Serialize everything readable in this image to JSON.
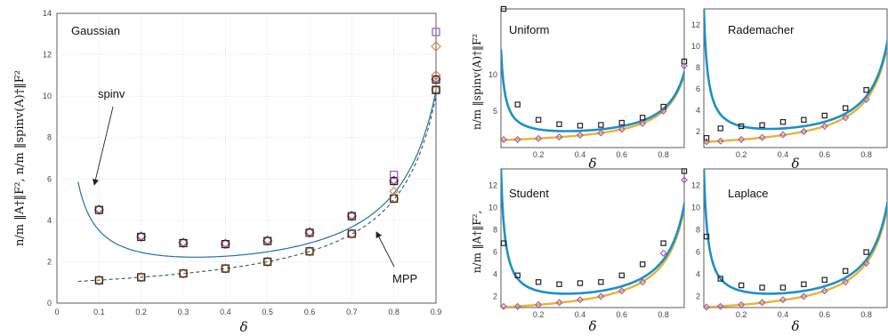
{
  "colors": {
    "spinv_line": "#1f6fb2",
    "mpp_line": "#2a5f44",
    "blue_thick": "#1b90c8",
    "orange_thick": "#e9b332",
    "diamond": "#9b57b8",
    "square": "#222222"
  },
  "labels": {
    "spinv": "spinv",
    "mpp": "MPP",
    "ylabel_main": "n/m ‖A†‖F², n/m ‖spinv(A)†‖F²",
    "ylabel_top": "n/m ‖spinv(A)†‖F²",
    "ylabel_bottom": "n/m ‖A†‖F²,",
    "xlabel": "δ"
  },
  "chart_data": [
    {
      "type": "line",
      "title": "Gaussian",
      "xlabel": "δ",
      "xlim": [
        0,
        0.9
      ],
      "ylim": [
        0,
        14
      ],
      "xticks": [
        0,
        0.1,
        0.2,
        0.3,
        0.4,
        0.5,
        0.6,
        0.7,
        0.8,
        0.9
      ],
      "yticks": [
        0,
        2,
        4,
        6,
        8,
        10,
        12,
        14
      ],
      "grid": true,
      "annotations": [
        "spinv",
        "MPP"
      ],
      "x": [
        0.1,
        0.2,
        0.3,
        0.4,
        0.5,
        0.6,
        0.7,
        0.8,
        0.9
      ],
      "series": [
        {
          "name": "spinv",
          "style": "solid",
          "values": [
            4.5,
            3.2,
            2.9,
            2.85,
            3.0,
            3.4,
            4.2,
            5.9,
            10.8
          ]
        },
        {
          "name": "MPP",
          "style": "dashed",
          "values": [
            1.11,
            1.25,
            1.43,
            1.67,
            2.0,
            2.5,
            3.33,
            5.0,
            10.0
          ]
        }
      ],
      "markers_upper": [
        4.5,
        3.2,
        2.9,
        2.85,
        3.0,
        3.4,
        4.2,
        5.9,
        10.8
      ],
      "markers_lower": [
        1.1,
        1.25,
        1.43,
        1.67,
        2.0,
        2.5,
        3.35,
        5.05,
        10.3
      ],
      "outliers": [
        13.1,
        12.4,
        11.0,
        6.2,
        5.4
      ]
    },
    {
      "type": "line",
      "title": "Uniform",
      "xlabel": "δ",
      "xlim": [
        0.02,
        0.9
      ],
      "ylim": [
        0,
        19
      ],
      "xticks": [
        0.2,
        0.4,
        0.6,
        0.8
      ],
      "yticks": [
        5,
        10
      ],
      "grid": false,
      "x": [
        0.1,
        0.2,
        0.3,
        0.4,
        0.5,
        0.6,
        0.7,
        0.8,
        0.9
      ],
      "squares": [
        5.9,
        3.8,
        3.2,
        3.0,
        3.1,
        3.4,
        4.1,
        5.6,
        11.8
      ],
      "diamonds": [
        1.1,
        1.25,
        1.45,
        1.7,
        2.0,
        2.5,
        3.3,
        5.0,
        11.2
      ],
      "extra_points": {
        "square_at_0_02": 19.0,
        "diamond_at_0_02": 1.1
      }
    },
    {
      "type": "line",
      "title": "Rademacher",
      "xlabel": "δ",
      "xlim": [
        0.02,
        0.9
      ],
      "ylim": [
        0.5,
        13.5
      ],
      "xticks": [
        0.2,
        0.4,
        0.6,
        0.8
      ],
      "yticks": [
        2,
        4,
        6,
        8,
        10,
        12
      ],
      "grid": false,
      "x": [
        0.1,
        0.2,
        0.3,
        0.4,
        0.5,
        0.6,
        0.7,
        0.8
      ],
      "squares": [
        2.3,
        2.5,
        2.6,
        2.9,
        3.1,
        3.5,
        4.2,
        5.9
      ],
      "diamonds": [
        1.1,
        1.25,
        1.45,
        1.7,
        2.0,
        2.5,
        3.3,
        5.0
      ],
      "extra_points": {
        "square_at_0_02": 1.4,
        "diamond_at_0_02": 1.05
      }
    },
    {
      "type": "line",
      "title": "Student",
      "xlabel": "δ",
      "xlim": [
        0.02,
        0.9
      ],
      "ylim": [
        1,
        13.5
      ],
      "xticks": [
        0.2,
        0.4,
        0.6,
        0.8
      ],
      "yticks": [
        2,
        4,
        6,
        8,
        10,
        12
      ],
      "grid": false,
      "x": [
        0.1,
        0.2,
        0.3,
        0.4,
        0.5,
        0.6,
        0.7,
        0.8,
        0.9
      ],
      "squares": [
        3.9,
        3.3,
        3.1,
        3.2,
        3.3,
        3.9,
        4.9,
        6.8,
        13.3
      ],
      "diamonds": [
        1.1,
        1.25,
        1.45,
        1.7,
        2.0,
        2.5,
        3.3,
        5.9,
        12.5
      ],
      "extra_points": {
        "square_at_0_02": 6.8,
        "diamond_at_0_02": 1.1
      }
    },
    {
      "type": "line",
      "title": "Laplace",
      "xlabel": "δ",
      "xlim": [
        0.02,
        0.9
      ],
      "ylim": [
        1,
        13.5
      ],
      "xticks": [
        0.2,
        0.4,
        0.6,
        0.8
      ],
      "yticks": [
        2,
        4,
        6,
        8,
        10,
        12
      ],
      "grid": false,
      "x": [
        0.1,
        0.2,
        0.3,
        0.4,
        0.5,
        0.6,
        0.7,
        0.8
      ],
      "squares": [
        3.6,
        3.0,
        2.8,
        2.8,
        3.1,
        3.5,
        4.3,
        6.0
      ],
      "diamonds": [
        1.1,
        1.25,
        1.45,
        1.7,
        2.0,
        2.5,
        3.3,
        5.0
      ],
      "extra_points": {
        "square_at_0_02": 7.4,
        "diamond_at_0_02": 1.05
      }
    }
  ]
}
